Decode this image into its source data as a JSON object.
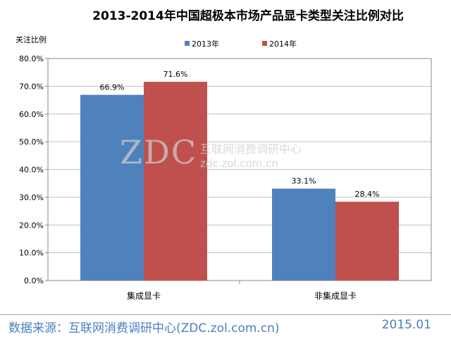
{
  "chart_data": {
    "type": "bar",
    "title": "2013-2014年中国超极本市场产品显卡类型关注比例对比",
    "ylabel": "关注比例",
    "xlabel": "",
    "categories": [
      "集成显卡",
      "非集成显卡"
    ],
    "series": [
      {
        "name": "2013年",
        "values": [
          66.9,
          33.1
        ],
        "labels": [
          "66.9%",
          "33.1%"
        ],
        "color": "#4f81bd"
      },
      {
        "name": "2014年",
        "values": [
          71.6,
          28.4
        ],
        "labels": [
          "71.6%",
          "28.4%"
        ],
        "color": "#c0504d"
      }
    ],
    "ylim": [
      0,
      80
    ],
    "yticks": [
      "0.0%",
      "10.0%",
      "20.0%",
      "30.0%",
      "40.0%",
      "50.0%",
      "60.0%",
      "70.0%",
      "80.0%"
    ],
    "grid": true,
    "legend_position": "top"
  },
  "watermark": {
    "logo": "ZDC",
    "name": "互联网消费调研中心",
    "url": "zdc.zol.com.cn"
  },
  "footer": {
    "source": "数据来源：互联网消费调研中心(ZDC.zol.com.cn)",
    "date": "2015.01"
  }
}
